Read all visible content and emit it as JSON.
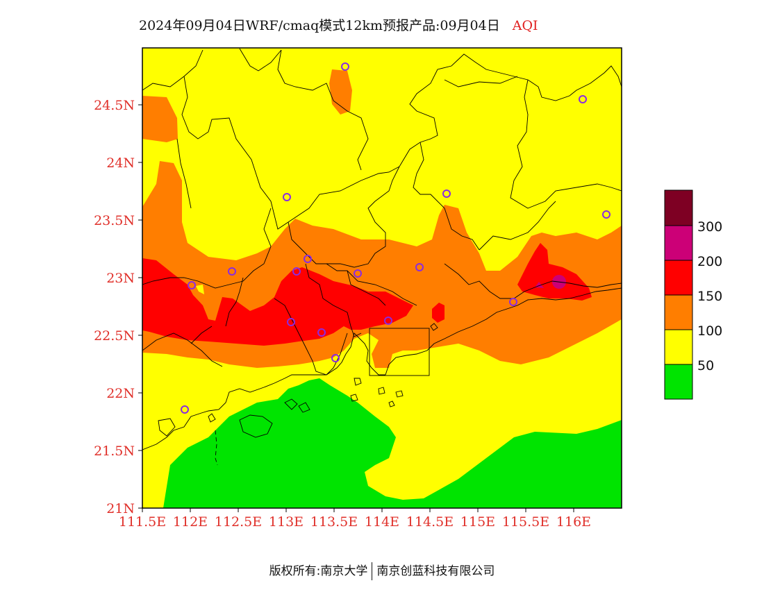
{
  "title": {
    "main": "2024年09月04日WRF/cmaq模式12km预报产品:09月04日",
    "product": "AQI"
  },
  "axes": {
    "x_ticks": [
      "111.5E",
      "112E",
      "112.5E",
      "113E",
      "113.5E",
      "114E",
      "114.5E",
      "115E",
      "115.5E",
      "116E"
    ],
    "y_ticks": [
      "21N",
      "21.5N",
      "22N",
      "22.5N",
      "23N",
      "23.5N",
      "24N",
      "24.5N"
    ],
    "tick_color": "#e0302a"
  },
  "legend": {
    "labels": [
      "50",
      "100",
      "150",
      "200",
      "300"
    ],
    "colors": [
      "#00e400",
      "#ffff00",
      "#ff7e00",
      "#ff0000",
      "#cc0077",
      "#7e0023"
    ]
  },
  "colors": {
    "good": "#00e400",
    "moderate": "#ffff00",
    "sensitive": "#ff7e00",
    "unhealthy": "#ff0000",
    "very_unhealthy": "#cc0077"
  },
  "footer": {
    "left": "版权所有:南京大学",
    "right": "南京创蓝科技有限公司"
  }
}
